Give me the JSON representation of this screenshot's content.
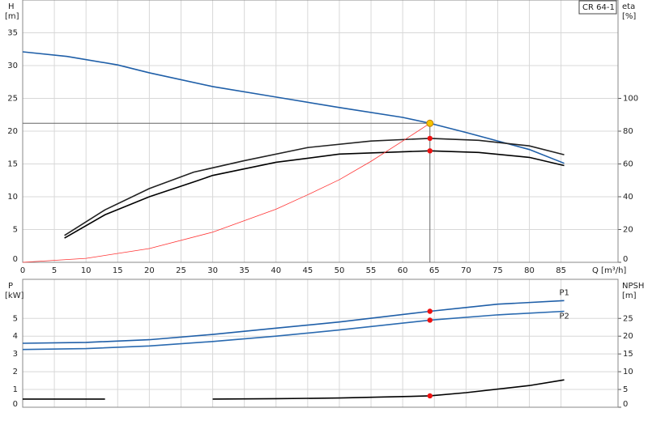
{
  "chart_data": [
    {
      "type": "line",
      "legend": "CR 64-1",
      "ylabel": "H",
      "yunit": "[m]",
      "y2label": "eta",
      "y2unit": "[%]",
      "xlabel": "Q [m³/h]",
      "xlim": [
        0,
        94
      ],
      "xticks": [
        0,
        5,
        10,
        15,
        20,
        25,
        30,
        35,
        40,
        45,
        50,
        55,
        60,
        65,
        70,
        75,
        80,
        85
      ],
      "ylim": [
        0,
        40
      ],
      "yticks": [
        0,
        5,
        10,
        15,
        20,
        25,
        30,
        35
      ],
      "y2lim": [
        0,
        160
      ],
      "y2ticks": [
        0,
        20,
        40,
        60,
        80,
        100
      ],
      "grid": true,
      "duty_point": {
        "x": 64.3,
        "y": 21.2,
        "color": "#f5c400"
      },
      "series": [
        {
          "color": "#1f5fa8",
          "x": [
            0,
            7,
            15,
            20,
            30,
            40,
            50,
            60,
            64.3,
            70,
            80,
            85.5
          ],
          "values": [
            32.1,
            31.4,
            30.1,
            28.9,
            26.8,
            25.2,
            23.6,
            22.1,
            21.2,
            19.8,
            17.2,
            15.1
          ]
        },
        {
          "color": "#222222",
          "axis": "y2",
          "x": [
            6.6,
            13,
            20,
            27,
            35,
            45,
            55,
            64.3,
            72,
            80,
            85.5
          ],
          "values": [
            16.4,
            32,
            45,
            55,
            62,
            70,
            74,
            75.6,
            74.4,
            71,
            65.6
          ]
        },
        {
          "color": "#000000",
          "axis": "y2",
          "x": [
            6.6,
            13,
            20,
            27,
            30,
            40,
            50,
            64.3,
            72,
            80,
            85.5
          ],
          "values": [
            14.8,
            29,
            40,
            49,
            53,
            61,
            66,
            68,
            67,
            64,
            59
          ]
        },
        {
          "color": "#ff3333",
          "x": [
            0,
            10,
            20,
            30,
            40,
            45,
            50,
            55,
            60,
            64.3
          ],
          "values": [
            0,
            0.6,
            2.1,
            4.6,
            8.1,
            10.3,
            12.6,
            15.4,
            18.5,
            21.2
          ]
        }
      ]
    },
    {
      "type": "line",
      "ylabel": "P",
      "yunit": "[kW]",
      "y2label": "NPSH",
      "y2unit": "[m]",
      "xlim": [
        0,
        94
      ],
      "ylim": [
        0,
        7.2
      ],
      "yticks": [
        0,
        1,
        2,
        3,
        4,
        5
      ],
      "y2lim": [
        0,
        36
      ],
      "y2ticks": [
        0,
        5,
        10,
        15,
        20,
        25
      ],
      "grid": true,
      "series": [
        {
          "name": "P1",
          "color": "#1f5fa8",
          "x": [
            0,
            10,
            20,
            30,
            40,
            50,
            64.3,
            75,
            85.5
          ],
          "values": [
            3.6,
            3.65,
            3.8,
            4.1,
            4.45,
            4.8,
            5.4,
            5.8,
            6.0
          ]
        },
        {
          "name": "P2",
          "color": "#2a6ab0",
          "x": [
            0,
            10,
            20,
            30,
            40,
            50,
            64.3,
            75,
            85.5
          ],
          "values": [
            3.25,
            3.3,
            3.45,
            3.7,
            4.0,
            4.35,
            4.9,
            5.2,
            5.4
          ]
        },
        {
          "color": "#000000",
          "axis": "y2",
          "x": [
            0,
            13,
            20,
            30,
            40,
            50,
            60,
            64.3,
            70,
            80,
            85.5
          ],
          "values": [
            2.3,
            2.3,
            null,
            2.3,
            2.4,
            2.6,
            3.0,
            3.2,
            4.1,
            6.1,
            7.7
          ]
        }
      ]
    }
  ]
}
